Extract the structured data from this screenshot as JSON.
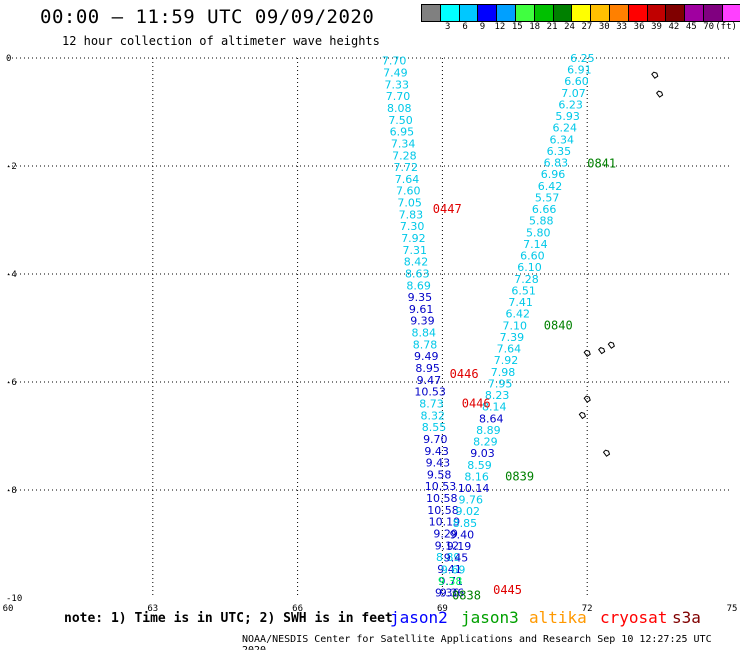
{
  "header": {
    "title": "00:00 – 11:59 UTC 09/09/2020",
    "subtitle": "12 hour collection of altimeter wave heights"
  },
  "color_scale": {
    "colors": [
      "#808080",
      "#00ffff",
      "#00c8ff",
      "#0000ff",
      "#00a0ff",
      "#40ff40",
      "#00c000",
      "#008000",
      "#ffff00",
      "#ffc000",
      "#ff8000",
      "#ff0000",
      "#c00000",
      "#800000",
      "#a000a0",
      "#800080",
      "#ff40ff",
      "#000000"
    ],
    "labels": [
      "3",
      "6",
      "9",
      "12",
      "15",
      "18",
      "21",
      "24",
      "27",
      "30",
      "33",
      "36",
      "39",
      "42",
      "45",
      "70",
      "(ft)"
    ]
  },
  "map": {
    "lon_min": 60,
    "lon_max": 75,
    "lat_min": -10,
    "lat_max": 0,
    "x_ticks": [
      "60",
      "63",
      "66",
      "69",
      "72",
      "75"
    ],
    "y_ticks": [
      "0",
      "-2",
      "-4",
      "-6",
      "-8",
      "-10"
    ],
    "y_tick_values": [
      0,
      -2,
      -4,
      -6,
      -8,
      -10
    ],
    "x_tick_values": [
      60,
      63,
      66,
      69,
      72,
      75
    ],
    "islands": [
      {
        "lon": 73.5,
        "lat": -0.65
      },
      {
        "lon": 73.4,
        "lat": -0.3
      },
      {
        "lon": 72.0,
        "lat": -5.45
      },
      {
        "lon": 72.3,
        "lat": -5.4
      },
      {
        "lon": 72.5,
        "lat": -5.3
      },
      {
        "lon": 72.0,
        "lat": -6.3
      },
      {
        "lon": 71.9,
        "lat": -6.6
      },
      {
        "lon": 72.4,
        "lat": -7.3
      }
    ]
  },
  "tracks": [
    {
      "satellite": "jason2",
      "color": "#00c8e8",
      "lon_start": 68.0,
      "lon_end": 69.2,
      "lat_start": -0.05,
      "lat_end": -9.9,
      "values": [
        "7.70",
        "7.49",
        "7.33",
        "7.70",
        "8.08",
        "7.50",
        "6.95",
        "7.34",
        "7.28",
        "7.72",
        "7.64",
        "7.60",
        "7.05",
        "7.83",
        "7.30",
        "7.92",
        "7.31",
        "8.42",
        "8.63",
        "8.69",
        "9.35",
        "9.61",
        "9.39",
        "8.84",
        "8.78",
        "9.49",
        "8.95",
        "9.47",
        "10.53",
        "8.73",
        "8.32",
        "8.55",
        "9.70",
        "9.43",
        "9.43",
        "9.58",
        "10.53",
        "10.58",
        "10.58",
        "10.19",
        "9.29",
        "9.12",
        "8.89",
        "9.41",
        "9.71",
        "9.36"
      ],
      "colors": [
        "#00c8e8",
        "#00c8e8",
        "#00c8e8",
        "#00c8e8",
        "#00c8e8",
        "#00c8e8",
        "#00c8e8",
        "#00c8e8",
        "#00c8e8",
        "#00c8e8",
        "#00c8e8",
        "#00c8e8",
        "#00c8e8",
        "#00c8e8",
        "#00c8e8",
        "#00c8e8",
        "#00c8e8",
        "#00c8e8",
        "#00c8e8",
        "#00c8e8",
        "#0000c8",
        "#0000c8",
        "#0000c8",
        "#00c8e8",
        "#00c8e8",
        "#0000c8",
        "#0000c8",
        "#0000c8",
        "#0000c8",
        "#00c8e8",
        "#00c8e8",
        "#00c8e8",
        "#0000c8",
        "#0000c8",
        "#0000c8",
        "#0000c8",
        "#0000c8",
        "#0000c8",
        "#0000c8",
        "#0000c8",
        "#0000c8",
        "#0000c8",
        "#00c8e8",
        "#0000c8",
        "#0000c8",
        "#0000c8"
      ]
    },
    {
      "satellite": "jason3",
      "color": "#00c8e8",
      "lon_start": 71.9,
      "lon_end": 69.1,
      "lat_start": 0.0,
      "lat_end": -9.9,
      "values": [
        "6.25",
        "6.91",
        "6.60",
        "7.07",
        "6.23",
        "5.93",
        "6.24",
        "6.34",
        "6.35",
        "6.83",
        "6.96",
        "6.42",
        "5.57",
        "6.66",
        "5.88",
        "5.80",
        "7.14",
        "6.60",
        "6.10",
        "7.28",
        "6.51",
        "7.41",
        "6.42",
        "7.10",
        "7.39",
        "7.64",
        "7.92",
        "7.98",
        "7.95",
        "8.23",
        "8.14",
        "8.64",
        "8.89",
        "8.29",
        "9.03",
        "8.59",
        "8.16",
        "10.14",
        "9.76",
        "9.02",
        "8.85",
        "9.40",
        "9.19",
        "9.45",
        "9.69",
        "9.38",
        "9.36"
      ],
      "colors": [
        "#00c8e8",
        "#00c8e8",
        "#00c8e8",
        "#00c8e8",
        "#00c8e8",
        "#00c8e8",
        "#00c8e8",
        "#00c8e8",
        "#00c8e8",
        "#00c8e8",
        "#00c8e8",
        "#00c8e8",
        "#00c8e8",
        "#00c8e8",
        "#00c8e8",
        "#00c8e8",
        "#00c8e8",
        "#00c8e8",
        "#00c8e8",
        "#00c8e8",
        "#00c8e8",
        "#00c8e8",
        "#00c8e8",
        "#00c8e8",
        "#00c8e8",
        "#00c8e8",
        "#00c8e8",
        "#00c8e8",
        "#00c8e8",
        "#00c8e8",
        "#00c8e8",
        "#0000c8",
        "#00c8e8",
        "#00c8e8",
        "#0000c8",
        "#00c8e8",
        "#00c8e8",
        "#0000c8",
        "#00c8e8",
        "#00c8e8",
        "#00c8e8",
        "#0000c8",
        "#0000c8",
        "#0000c8",
        "#00c8e8",
        "#00ff60",
        "#0000c8"
      ]
    }
  ],
  "time_labels": [
    {
      "text": "0447",
      "color": "#e00000",
      "lon": 69.1,
      "lat": -2.8
    },
    {
      "text": "0446",
      "color": "#e00000",
      "lon": 69.45,
      "lat": -5.85
    },
    {
      "text": "0446",
      "color": "#e00000",
      "lon": 69.7,
      "lat": -6.4
    },
    {
      "text": "0445",
      "color": "#e00000",
      "lon": 70.35,
      "lat": -9.85
    },
    {
      "text": "0841",
      "color": "#008000",
      "lon": 72.3,
      "lat": -1.95
    },
    {
      "text": "0840",
      "color": "#008000",
      "lon": 71.4,
      "lat": -4.95
    },
    {
      "text": "0839",
      "color": "#008000",
      "lon": 70.6,
      "lat": -7.75
    },
    {
      "text": "0838",
      "color": "#008000",
      "lon": 69.5,
      "lat": -9.95
    }
  ],
  "footer": {
    "note": "note: 1) Time is in UTC; 2) SWH is in feet",
    "legend": [
      {
        "name": "jason2",
        "color": "#0000ff"
      },
      {
        "name": "jason3",
        "color": "#00a000"
      },
      {
        "name": "altika",
        "color": "#ff9900"
      },
      {
        "name": "cryosat",
        "color": "#ff0000"
      },
      {
        "name": "s3a",
        "color": "#800000"
      }
    ],
    "credit": "NOAA/NESDIS Center for Satellite Applications and Research   Sep 10 12:27:25 UTC 2020"
  }
}
